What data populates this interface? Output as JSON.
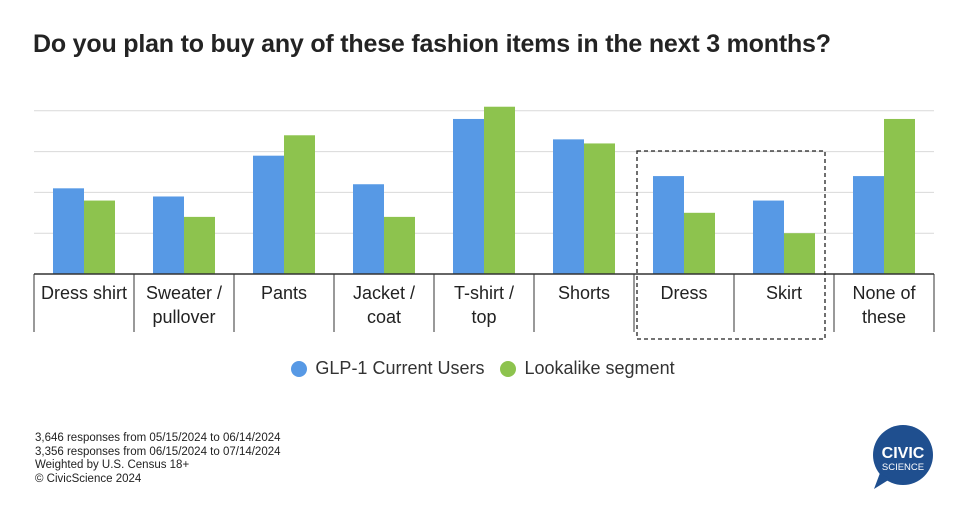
{
  "title": "Do you plan to buy any of these fashion items in the next 3 months?",
  "chart_data": {
    "type": "bar",
    "categories": [
      [
        "Dress shirt"
      ],
      [
        "Sweater /",
        "pullover"
      ],
      [
        "Pants"
      ],
      [
        "Jacket /",
        "coat"
      ],
      [
        "T-shirt /",
        "top"
      ],
      [
        "Shorts"
      ],
      [
        "Dress"
      ],
      [
        "Skirt"
      ],
      [
        "None of",
        "these"
      ]
    ],
    "series": [
      {
        "name": "GLP-1 Current Users",
        "color": "#5799e5",
        "values": [
          21,
          19,
          29,
          22,
          38,
          33,
          24,
          18,
          24
        ]
      },
      {
        "name": "Lookalike segment",
        "color": "#8dc34e",
        "values": [
          18,
          14,
          34,
          14,
          41,
          32,
          15,
          10,
          38
        ]
      }
    ],
    "ylim": [
      0,
      50
    ],
    "grid": true,
    "y_tick_labels_shown": false,
    "highlighted_categories": [
      "Dress",
      "Skirt"
    ],
    "legend_position": "bottom"
  },
  "notes": [
    "3,646 responses from 05/15/2024 to 06/14/2024",
    "3,356 responses from 06/15/2024 to 07/14/2024",
    "Weighted by U.S. Census 18+",
    "© CivicScience 2024"
  ],
  "logo": {
    "line1": "CIVIC",
    "line2": "SCIENCE",
    "color": "#1f4f8f"
  }
}
